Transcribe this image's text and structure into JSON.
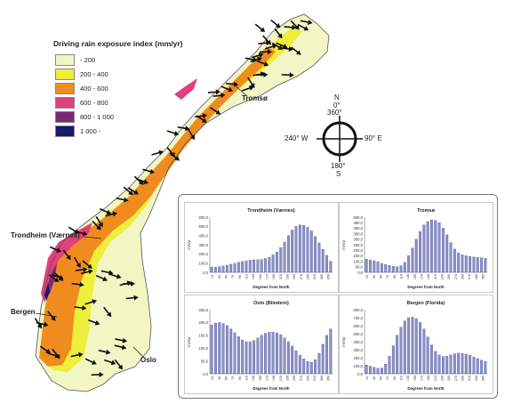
{
  "legend": {
    "title": "Driving rain exposure index (mm/yr)",
    "items": [
      {
        "label": "- 200",
        "color": "#f2f6c4"
      },
      {
        "label": "200 - 400",
        "color": "#eeee3c"
      },
      {
        "label": "400 - 600",
        "color": "#f08c1e"
      },
      {
        "label": "600 - 800",
        "color": "#e0407c"
      },
      {
        "label": "800 - 1 000",
        "color": "#7c2878"
      },
      {
        "label": "1 000 -",
        "color": "#181870"
      }
    ]
  },
  "cities": {
    "tromso": "Tromsø",
    "trondheim": "Trondheim (Værnes)",
    "bergen": "Bergen",
    "oslo": "Oslo"
  },
  "compass": {
    "n": "N",
    "n0": "0°",
    "n360": "360°",
    "w": "240°  W",
    "e": "90°  E",
    "s180": "180°",
    "s": "S"
  },
  "chart_data": [
    {
      "type": "bar",
      "title": "Trondheim (Værnes)",
      "xlabel": "Degrees from North",
      "ylabel": "mm/yr",
      "ylim": [
        0,
        600
      ],
      "yticks": [
        "0,0",
        "100,0",
        "200,0",
        "300,0",
        "400,0",
        "500,0",
        "600,0"
      ],
      "xticks": [
        "10",
        "30",
        "50",
        "70",
        "90",
        "110",
        "130",
        "150",
        "170",
        "190",
        "210",
        "230",
        "250",
        "270",
        "290",
        "310",
        "330",
        "350"
      ],
      "values": [
        58,
        55,
        62,
        70,
        78,
        88,
        98,
        110,
        118,
        126,
        132,
        136,
        138,
        140,
        150,
        165,
        190,
        220,
        270,
        330,
        400,
        460,
        500,
        515,
        510,
        490,
        450,
        390,
        320,
        250,
        185,
        120
      ]
    },
    {
      "type": "bar",
      "title": "Tromsø",
      "xlabel": "Degrees from North",
      "ylabel": "mm/yr",
      "ylim": [
        0,
        500
      ],
      "yticks": [
        "0,0",
        "50,0",
        "100,0",
        "150,0",
        "200,0",
        "250,0",
        "300,0",
        "350,0",
        "400,0",
        "450,0",
        "500,0"
      ],
      "xticks": [
        "10",
        "30",
        "50",
        "70",
        "90",
        "110",
        "130",
        "150",
        "170",
        "190",
        "210",
        "230",
        "250",
        "270",
        "290",
        "310",
        "330",
        "350"
      ],
      "values": [
        120,
        112,
        105,
        95,
        80,
        70,
        62,
        55,
        50,
        60,
        90,
        150,
        220,
        300,
        370,
        430,
        460,
        475,
        470,
        450,
        400,
        340,
        270,
        210,
        175,
        160,
        150,
        145,
        140,
        135,
        132,
        128
      ]
    },
    {
      "type": "bar",
      "title": "Oslo (Blindern)",
      "xlabel": "Degrees from North",
      "ylabel": "mm/yr",
      "ylim": [
        0,
        250
      ],
      "yticks": [
        "0,0",
        "50,0",
        "100,0",
        "150,0",
        "200,0",
        "250,0"
      ],
      "xticks": [
        "10",
        "30",
        "50",
        "70",
        "90",
        "110",
        "130",
        "150",
        "170",
        "190",
        "210",
        "230",
        "250",
        "270",
        "290",
        "310",
        "330",
        "350"
      ],
      "values": [
        190,
        198,
        200,
        196,
        188,
        175,
        160,
        145,
        132,
        125,
        125,
        130,
        140,
        150,
        158,
        162,
        163,
        160,
        152,
        140,
        125,
        108,
        90,
        72,
        58,
        48,
        45,
        55,
        80,
        115,
        150,
        175
      ]
    },
    {
      "type": "bar",
      "title": "Bergen (Florida)",
      "xlabel": "Degrees from North",
      "ylabel": "mm/yr",
      "ylim": [
        0,
        800
      ],
      "yticks": [
        "0,0",
        "100,0",
        "200,0",
        "300,0",
        "400,0",
        "500,0",
        "600,0",
        "700,0",
        "800,0"
      ],
      "xticks": [
        "10",
        "30",
        "50",
        "70",
        "90",
        "110",
        "130",
        "150",
        "170",
        "190",
        "210",
        "230",
        "250",
        "270",
        "290",
        "310",
        "330",
        "350"
      ],
      "values": [
        110,
        95,
        80,
        68,
        72,
        120,
        220,
        350,
        480,
        580,
        660,
        700,
        710,
        690,
        640,
        560,
        460,
        360,
        280,
        235,
        215,
        220,
        235,
        250,
        258,
        255,
        245,
        230,
        210,
        190,
        170,
        155
      ]
    }
  ]
}
